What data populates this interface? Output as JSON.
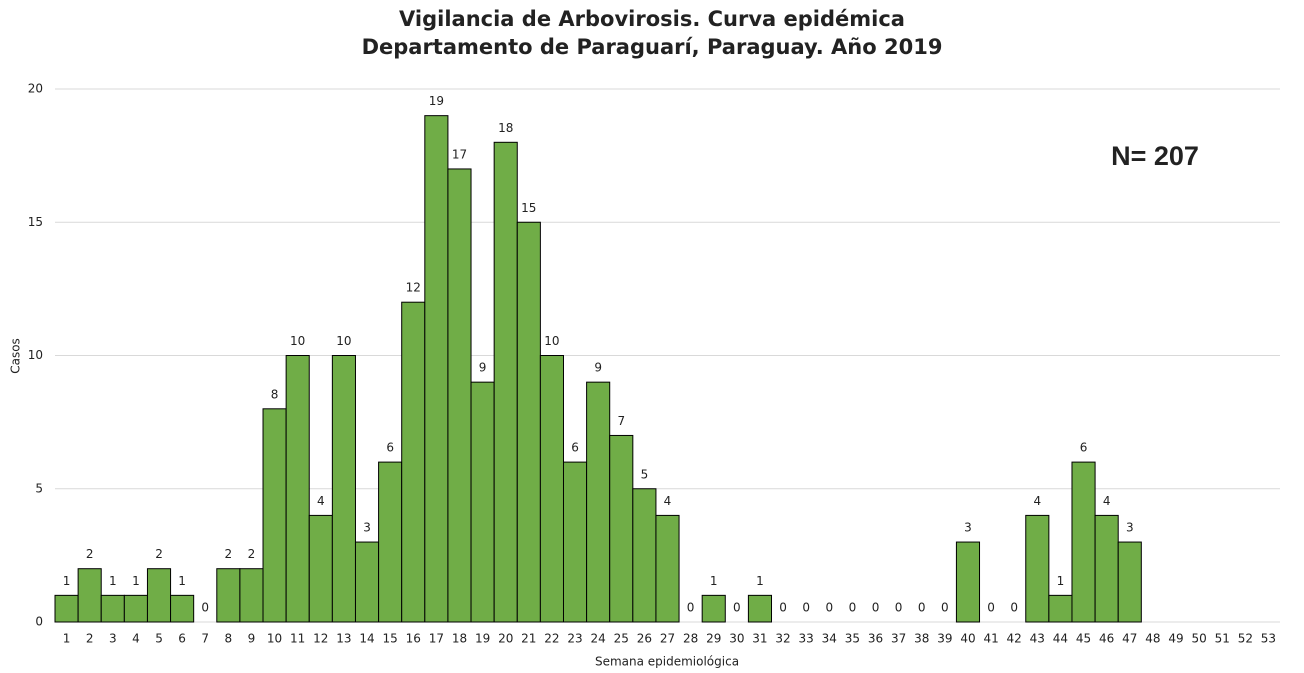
{
  "chart_data": {
    "type": "bar",
    "title": [
      "Vigilancia de Arbovirosis. Curva epidémica",
      "Departamento de Paraguarí, Paraguay. Año 2019"
    ],
    "annotation": "N= 207",
    "x_label": "Semana epidemiológica",
    "y_label": "Casos",
    "categories": [
      "1",
      "2",
      "3",
      "4",
      "5",
      "6",
      "7",
      "8",
      "9",
      "10",
      "11",
      "12",
      "13",
      "14",
      "15",
      "16",
      "17",
      "18",
      "19",
      "20",
      "21",
      "22",
      "23",
      "24",
      "25",
      "26",
      "27",
      "28",
      "29",
      "30",
      "31",
      "32",
      "33",
      "34",
      "35",
      "36",
      "37",
      "38",
      "39",
      "40",
      "41",
      "42",
      "43",
      "44",
      "45",
      "46",
      "47",
      "48",
      "49",
      "50",
      "51",
      "52",
      "53"
    ],
    "values": [
      1,
      2,
      1,
      1,
      2,
      1,
      0,
      2,
      2,
      8,
      10,
      4,
      10,
      3,
      6,
      12,
      19,
      17,
      9,
      18,
      15,
      10,
      6,
      9,
      7,
      5,
      4,
      0,
      1,
      0,
      1,
      0,
      0,
      0,
      0,
      0,
      0,
      0,
      0,
      3,
      0,
      0,
      4,
      1,
      6,
      4,
      3,
      null,
      null,
      null,
      null,
      null,
      null
    ],
    "color": "#70ad47",
    "ylim": [
      0,
      20
    ],
    "yticks": [
      0,
      5,
      10,
      15,
      20
    ],
    "grid": true
  }
}
